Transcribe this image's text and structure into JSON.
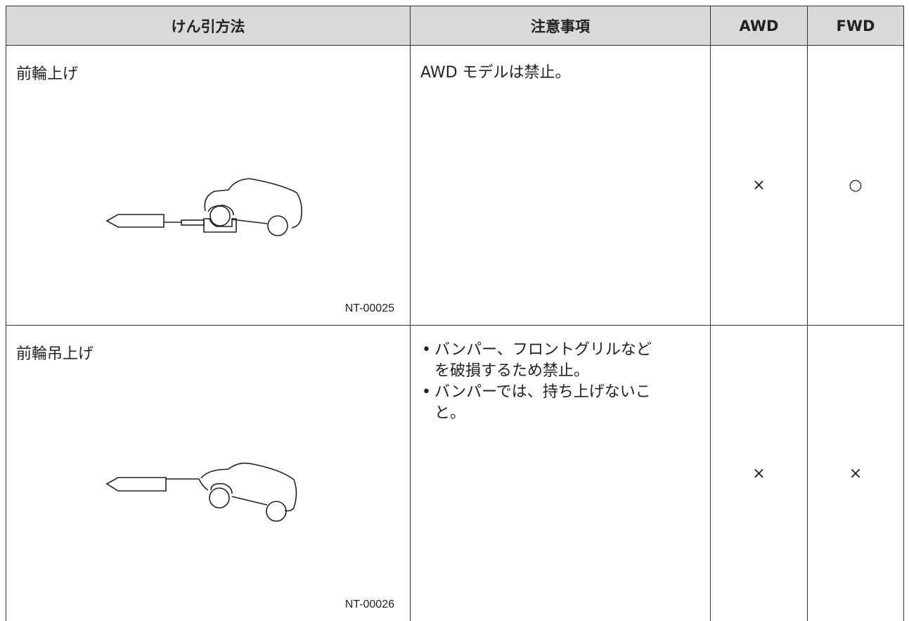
{
  "table": {
    "header": [
      "けん引方法",
      "注意事項",
      "AWD",
      "FWD"
    ],
    "rows": [
      {
        "method": "前輪上げ",
        "figure": "NT-00025",
        "notes": [
          "AWD モデルは禁止。"
        ],
        "awd": "×",
        "fwd": "○"
      },
      {
        "method": "前輪吊上げ",
        "figure": "NT-00026",
        "notes": [
          "バンパー、フロントグリルなどを破損するため禁止。",
          "バンパーでは、持ち上げないこと。"
        ],
        "awd": "×",
        "fwd": "×"
      }
    ]
  }
}
